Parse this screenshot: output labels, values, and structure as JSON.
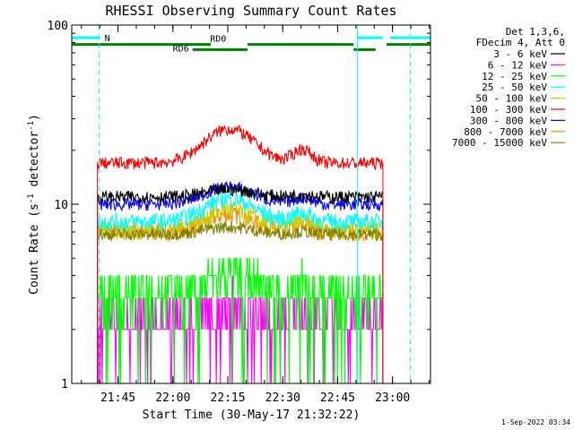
{
  "chart_data": {
    "type": "line",
    "title": "RHESSI Observing Summary Count Rates",
    "xlabel": "Start Time (30-May-17 21:32:22)",
    "ylabel_main": "Count Rate (s",
    "ylabel_sup1": "-1",
    "ylabel_mid": " detector",
    "ylabel_sup2": "-1",
    "ylabel_end": ")",
    "y_scale": "log",
    "ylim": [
      1,
      100
    ],
    "xlim_minutes": [
      0,
      98
    ],
    "xlim": [
      "21:32:22",
      "23:10:22"
    ],
    "y_ticks": [
      {
        "value": 1,
        "label": "1"
      },
      {
        "value": 10,
        "label": "10"
      },
      {
        "value": 100,
        "label": "100"
      }
    ],
    "x_ticks": [
      {
        "minute": 12.63,
        "label": "21:45"
      },
      {
        "minute": 27.63,
        "label": "22:00"
      },
      {
        "minute": 42.63,
        "label": "22:15"
      },
      {
        "minute": 57.63,
        "label": "22:30"
      },
      {
        "minute": 72.63,
        "label": "22:45"
      },
      {
        "minute": 87.63,
        "label": "23:00"
      }
    ],
    "data_window_minutes": [
      7,
      85
    ],
    "legend_header": [
      "Det 1,3,6,",
      "FDecim 4, Att 0"
    ],
    "legend_position": "right",
    "series": [
      {
        "name": "3 - 6 keV",
        "color": "#000000",
        "base": 11.0,
        "peak": 0.1,
        "noise": 0.05,
        "floor": false
      },
      {
        "name": "6 - 12 keV",
        "color": "#ff00ff",
        "base": 2.2,
        "peak": 0.25,
        "noise": 0.2,
        "floor": true
      },
      {
        "name": "12 - 25 keV",
        "color": "#00ff00",
        "base": 3.2,
        "peak": 0.25,
        "noise": 0.2,
        "floor": true
      },
      {
        "name": "25 - 50 keV",
        "color": "#00ffff",
        "base": 8.0,
        "peak": 0.35,
        "noise": 0.07,
        "floor": false
      },
      {
        "name": "50 - 100 keV",
        "color": "#cccc00",
        "base": 7.2,
        "peak": 0.3,
        "noise": 0.08,
        "floor": false
      },
      {
        "name": "100 - 300 keV",
        "color": "#ff0000",
        "base": 17.0,
        "peak": 0.55,
        "noise": 0.05,
        "floor": false
      },
      {
        "name": "300 - 800 keV",
        "color": "#0000ff",
        "base": 10.0,
        "peak": 0.25,
        "noise": 0.05,
        "floor": false
      },
      {
        "name": "800 - 7000 keV",
        "color": "#ff8800",
        "base": 7.0,
        "peak": 0.25,
        "noise": 0.07,
        "floor": false
      },
      {
        "name": "7000 - 15000 keV",
        "color": "#808000",
        "base": 6.8,
        "peak": 0.1,
        "noise": 0.05,
        "floor": false
      }
    ],
    "flag_bars": {
      "saa_label": "N",
      "saa_intervals_minutes": [
        [
          0,
          7.5
        ],
        [
          78,
          85
        ],
        [
          87,
          98
        ]
      ],
      "saa_y": 85,
      "rd0_label": "RD0",
      "rd0_intervals_minutes": [
        [
          0,
          38
        ],
        [
          48,
          77
        ],
        [
          86,
          98
        ]
      ],
      "rd0_y": 78,
      "rd6_label": "RD6",
      "rd6_intervals_minutes": [
        [
          33,
          48
        ],
        [
          77,
          83
        ]
      ],
      "rd6_y": 73
    },
    "vertical_markers_minutes": [
      {
        "minute": 7.5,
        "style": "dashed"
      },
      {
        "minute": 78,
        "style": "solid"
      },
      {
        "minute": 92.5,
        "style": "dashed"
      }
    ],
    "flag_color_saa": "#00ffff",
    "flag_color_rd": "#008000",
    "grid": false
  },
  "footer_date": "1-Sep-2022 03:34"
}
